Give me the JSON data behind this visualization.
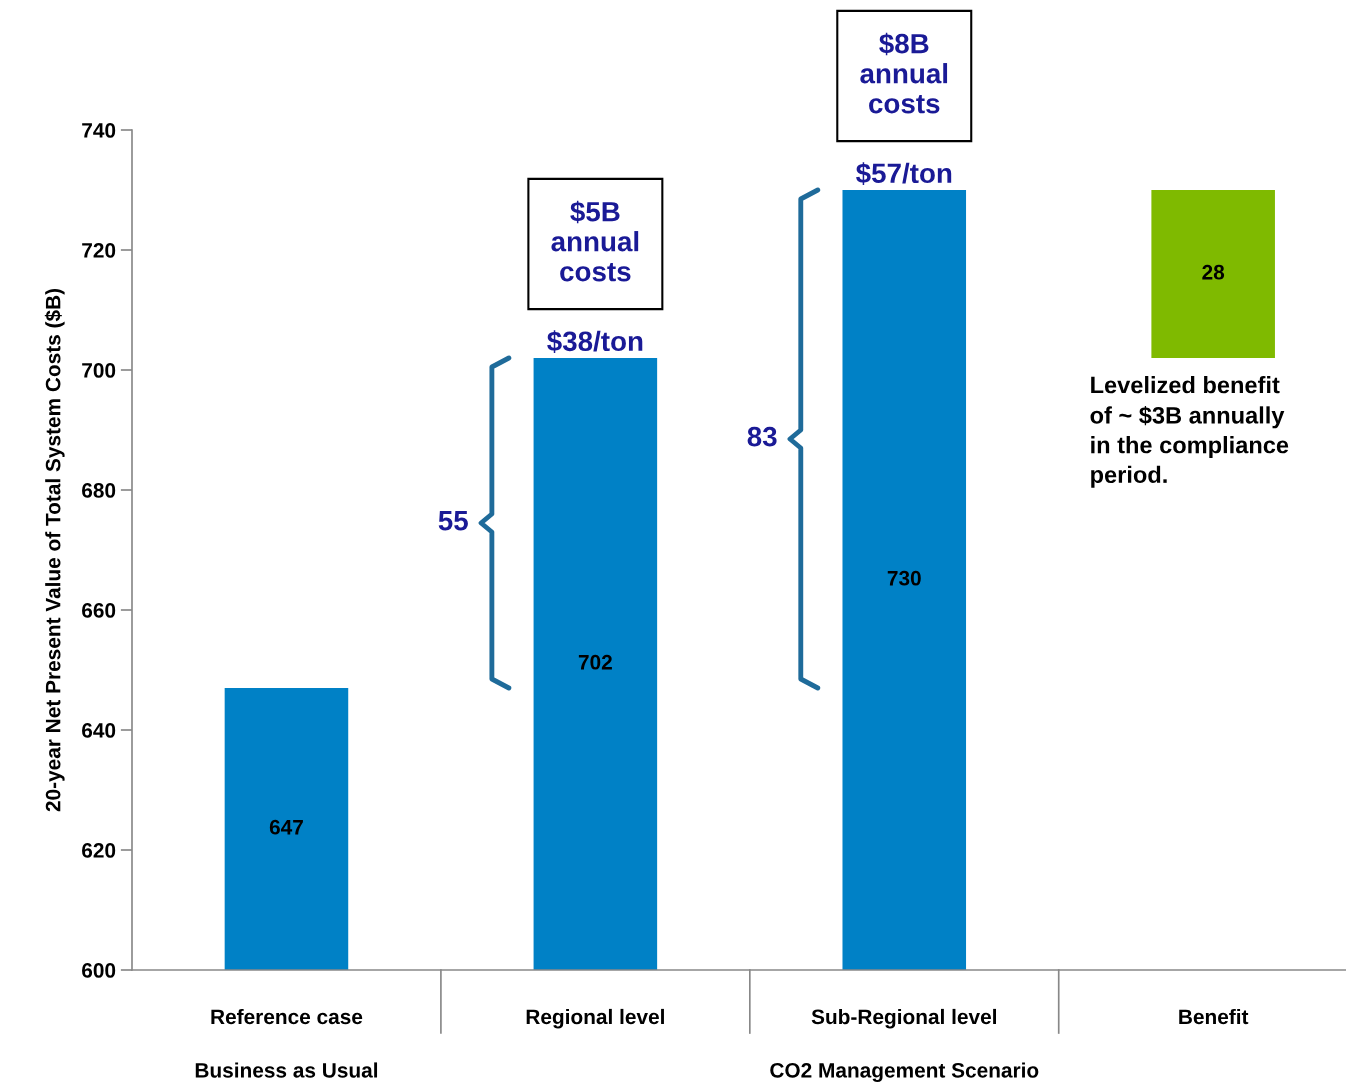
{
  "chart_data": {
    "type": "bar",
    "ylabel": "20-year Net Present Value of Total System Costs ($B)",
    "categories": [
      "Reference case",
      "Regional level",
      "Sub-Regional level",
      "Benefit"
    ],
    "values": [
      647,
      702,
      730,
      28
    ],
    "base": [
      null,
      null,
      null,
      702
    ],
    "colors": [
      "#0081c6",
      "#0081c6",
      "#0081c6",
      "#7fba00"
    ],
    "ylim": [
      600,
      740
    ],
    "yticks": [
      600,
      620,
      640,
      660,
      680,
      700,
      720,
      740
    ],
    "data_labels": true,
    "grid": false,
    "legend": false,
    "annotations": [
      "$5B\nannual\ncosts",
      "$38/ton",
      "$8B\nannual\ncosts",
      "$57/ton",
      "55",
      "83",
      "Levelized benefit\nof ~ $3B annually\nin the compliance\nperiod.",
      "Business as Usual",
      "CO2 Management Scenario"
    ]
  }
}
